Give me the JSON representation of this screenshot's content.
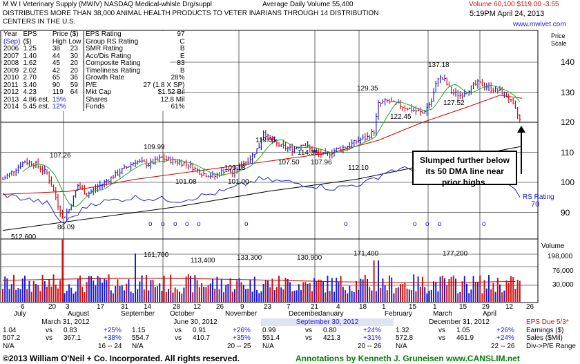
{
  "header": {
    "company": "M W I Veterinary Supply",
    "ticker": "(MWIV)",
    "exchange": "NASDAQ",
    "industry": "Medical-whlsle Drg/suppl",
    "avg_volume": "Average Daily Volume 55,400",
    "volume_today": "Volume 60,100",
    "price": "$119.00",
    "change": "-3.55",
    "description": "DISTRIBUTES MORE THAN 38,000 ANIMAL HEALTH PRODUCTS TO VETER INARIANS THROUGH 14 DISTRIBUTION CENTERS IN THE U.S.",
    "datetime": "5:19PM April 24, 2013",
    "website": "www.mwivet.com",
    "price_scale": "Price Scale"
  },
  "eps_table": {
    "headers": [
      "Year",
      "EPS",
      "Price ($)"
    ],
    "subheaders": [
      "(Sep)",
      "($)",
      "High Low"
    ],
    "rows": [
      {
        "year": "2006",
        "eps": "1.25",
        "high": "38",
        "low": "23"
      },
      {
        "year": "2007",
        "eps": "1.40",
        "high": "44",
        "low": "30"
      },
      {
        "year": "2008",
        "eps": "1.62",
        "high": "45",
        "low": "20"
      },
      {
        "year": "2009",
        "eps": "2.02",
        "high": "42",
        "low": "20"
      },
      {
        "year": "2010",
        "eps": "2.70",
        "high": "65",
        "low": "36"
      },
      {
        "year": "2011",
        "eps": "3.40",
        "high": "90",
        "low": "59"
      },
      {
        "year": "2012",
        "eps": "4.23",
        "high": "119",
        "low": "64"
      },
      {
        "year": "2013",
        "eps": "4.86 est.",
        "pct": "15%"
      },
      {
        "year": "2014",
        "eps": "5.45 est.",
        "pct": "12%"
      }
    ]
  },
  "ratings": [
    {
      "label": "EPS Rating",
      "value": "97"
    },
    {
      "label": "Group RS Rating",
      "value": "C"
    },
    {
      "label": "SMR Rating",
      "value": "B"
    },
    {
      "label": "Acc/Dis Rating",
      "value": "E"
    },
    {
      "label": "Composite Rating",
      "value": "83"
    },
    {
      "label": "Timeliness Rating",
      "value": "B"
    },
    {
      "label": "Growth Rate",
      "value": "28%"
    },
    {
      "label": "P/E",
      "value": "27 (1.8 X SP)"
    },
    {
      "label": "Mkt Cap",
      "value": "$1.52 Bil"
    },
    {
      "label": "Shares",
      "value": "12.8 Mil"
    },
    {
      "label": "Funds",
      "value": "61%"
    }
  ],
  "chart_data": {
    "type": "line",
    "price_axis": {
      "ticks": [
        90,
        100,
        110,
        120,
        130,
        140
      ],
      "range": [
        84,
        145
      ]
    },
    "volume_axis": {
      "ticks": [
        "198,000",
        "76,000",
        "30,000"
      ]
    },
    "x_month_labels": [
      "July",
      "August",
      "September",
      "October",
      "November",
      "December",
      "January",
      "February",
      "March",
      "April"
    ],
    "x_day_labels": [
      "6",
      "20",
      "3",
      "17",
      "31",
      "14",
      "28",
      "12",
      "26",
      "9",
      "23",
      "7",
      "21",
      "4",
      "18",
      "1",
      "15",
      "1",
      "15",
      "29",
      "12",
      "26"
    ],
    "price_annotations": [
      "107.26",
      "86.09",
      "109.99",
      "101.08",
      "109.18",
      "101.00",
      "119.05",
      "107.50",
      "114.36",
      "107.96",
      "112.10",
      "129.35",
      "122.45",
      "137.18",
      "127.52"
    ],
    "volume_annotations": [
      "512,600",
      "161,700",
      "113,400",
      "133,300",
      "130,900",
      "171,400",
      "177,200"
    ],
    "rs_label": "RS Rating",
    "rs_value": "70",
    "callout": "Slumped further below its 50 DMA line near prior highs.",
    "volume_label": "Volume",
    "close_series": [
      {
        "x": 0,
        "y": 101
      },
      {
        "x": 5,
        "y": 104
      },
      {
        "x": 10,
        "y": 107
      },
      {
        "x": 15,
        "y": 106
      },
      {
        "x": 20,
        "y": 103
      },
      {
        "x": 24,
        "y": 95
      },
      {
        "x": 27,
        "y": 88
      },
      {
        "x": 30,
        "y": 91
      },
      {
        "x": 34,
        "y": 99
      },
      {
        "x": 38,
        "y": 96
      },
      {
        "x": 42,
        "y": 98
      },
      {
        "x": 48,
        "y": 101
      },
      {
        "x": 54,
        "y": 104
      },
      {
        "x": 60,
        "y": 107
      },
      {
        "x": 66,
        "y": 106
      },
      {
        "x": 72,
        "y": 108
      },
      {
        "x": 78,
        "y": 107
      },
      {
        "x": 84,
        "y": 106
      },
      {
        "x": 90,
        "y": 103
      },
      {
        "x": 96,
        "y": 102
      },
      {
        "x": 100,
        "y": 104
      },
      {
        "x": 104,
        "y": 103
      },
      {
        "x": 108,
        "y": 106
      },
      {
        "x": 112,
        "y": 108
      },
      {
        "x": 116,
        "y": 112
      },
      {
        "x": 118,
        "y": 117
      },
      {
        "x": 121,
        "y": 114
      },
      {
        "x": 126,
        "y": 112
      },
      {
        "x": 131,
        "y": 111
      },
      {
        "x": 136,
        "y": 113
      },
      {
        "x": 141,
        "y": 110
      },
      {
        "x": 146,
        "y": 109
      },
      {
        "x": 151,
        "y": 111
      },
      {
        "x": 156,
        "y": 112
      },
      {
        "x": 161,
        "y": 114
      },
      {
        "x": 165,
        "y": 115
      },
      {
        "x": 168,
        "y": 117
      },
      {
        "x": 170,
        "y": 126
      },
      {
        "x": 174,
        "y": 127
      },
      {
        "x": 178,
        "y": 126
      },
      {
        "x": 182,
        "y": 125
      },
      {
        "x": 186,
        "y": 124
      },
      {
        "x": 190,
        "y": 123
      },
      {
        "x": 194,
        "y": 127
      },
      {
        "x": 197,
        "y": 135
      },
      {
        "x": 200,
        "y": 134
      },
      {
        "x": 203,
        "y": 130
      },
      {
        "x": 207,
        "y": 129
      },
      {
        "x": 211,
        "y": 131
      },
      {
        "x": 215,
        "y": 133
      },
      {
        "x": 219,
        "y": 132
      },
      {
        "x": 222,
        "y": 131
      },
      {
        "x": 226,
        "y": 130
      },
      {
        "x": 229,
        "y": 128
      },
      {
        "x": 232,
        "y": 124
      },
      {
        "x": 235,
        "y": 119
      }
    ],
    "dma50_series": [
      {
        "x": 0,
        "y": 96
      },
      {
        "x": 30,
        "y": 97
      },
      {
        "x": 60,
        "y": 101
      },
      {
        "x": 90,
        "y": 104
      },
      {
        "x": 120,
        "y": 107
      },
      {
        "x": 150,
        "y": 110
      },
      {
        "x": 170,
        "y": 114
      },
      {
        "x": 190,
        "y": 120
      },
      {
        "x": 210,
        "y": 125
      },
      {
        "x": 225,
        "y": 129
      },
      {
        "x": 235,
        "y": 128
      }
    ],
    "dma200_series": [
      {
        "x": 0,
        "y": 84
      },
      {
        "x": 40,
        "y": 88
      },
      {
        "x": 80,
        "y": 92
      },
      {
        "x": 120,
        "y": 97
      },
      {
        "x": 160,
        "y": 101
      },
      {
        "x": 200,
        "y": 107
      },
      {
        "x": 235,
        "y": 112
      }
    ],
    "rs_series": [
      {
        "x": 0,
        "y": 96
      },
      {
        "x": 20,
        "y": 93
      },
      {
        "x": 27,
        "y": 86
      },
      {
        "x": 40,
        "y": 93
      },
      {
        "x": 60,
        "y": 95
      },
      {
        "x": 80,
        "y": 94
      },
      {
        "x": 100,
        "y": 97
      },
      {
        "x": 116,
        "y": 101
      },
      {
        "x": 130,
        "y": 100
      },
      {
        "x": 150,
        "y": 98
      },
      {
        "x": 165,
        "y": 100
      },
      {
        "x": 175,
        "y": 104
      },
      {
        "x": 195,
        "y": 105
      },
      {
        "x": 210,
        "y": 103
      },
      {
        "x": 225,
        "y": 102
      },
      {
        "x": 235,
        "y": 95
      }
    ]
  },
  "quarters": [
    {
      "title": "March 31, 2012",
      "r1": {
        "a": "1.04",
        "vs": "vs",
        "b": "0.83",
        "pct": "+25%"
      },
      "r2": {
        "a": "507.2",
        "vs": "vs",
        "b": "367.1",
        "pct": "+38%"
      },
      "r3": {
        "a": "N/A",
        "range": "16 -- 24"
      }
    },
    {
      "title": "June 30, 2012",
      "r1": {
        "a": "1.15",
        "vs": "vs",
        "b": "0.91",
        "pct": "+26%"
      },
      "r2": {
        "a": "554.7",
        "vs": "vs",
        "b": "410.7",
        "pct": "+35%"
      },
      "r3": {
        "a": "N/A",
        "range": "20 -- 25"
      }
    },
    {
      "title": "September 30, 2012",
      "r1": {
        "a": "0.99",
        "vs": "vs",
        "b": "0.80",
        "pct": "+24%"
      },
      "r2": {
        "a": "551.4",
        "vs": "vs",
        "b": "421.3",
        "pct": "+31%"
      },
      "r3": {
        "a": "N/A",
        "range": "20 -- 26"
      }
    },
    {
      "title": "December 31, 2012",
      "r1": {
        "a": "1.32",
        "vs": "vs",
        "b": "1.05",
        "pct": "+26%"
      },
      "r2": {
        "a": "572.8",
        "vs": "vs",
        "b": "461.9",
        "pct": "+24%"
      },
      "r3": {
        "a": "N/A",
        "range": "22 -- 26"
      }
    }
  ],
  "eps_due": "EPS Due 5/3*",
  "side_labels": [
    "Earnings ($)",
    "Sales ($Mil)",
    "Div->P/E Range"
  ],
  "footer": {
    "copyright": "©2013 William O'Neil + Co. Incorporated. All rights reserved.",
    "annotations": "Annotations by Kenneth J. Gruneisen www.CANSLIM.net"
  },
  "colors": {
    "up": "#1a1ad6",
    "down": "#d01010",
    "dma50": "#cc0000",
    "dma10": "#22aa22",
    "dma200": "#000000",
    "rs": "#2222cc"
  }
}
